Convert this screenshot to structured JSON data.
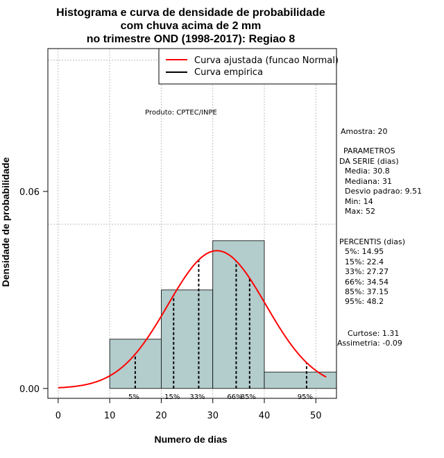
{
  "chart_data": {
    "type": "bar",
    "title_lines": [
      "Histograma e curva de densidade de probabilidade",
      "com chuva acima de 2 mm",
      "no trimestre OND (1998-2017): Regiao 8"
    ],
    "xlabel": "Numero de dias",
    "ylabel": "Densidade de probabilidade",
    "xlim": [
      -2,
      54
    ],
    "ylim": [
      -0.003,
      0.1035
    ],
    "x_ticks": [
      0,
      10,
      20,
      30,
      40,
      50
    ],
    "y_ticks": [
      0.0,
      0.06
    ],
    "y_tick_labels": [
      "0.00",
      "0.06"
    ],
    "bins": [
      {
        "start": 10,
        "end": 20,
        "density": 0.015
      },
      {
        "start": 20,
        "end": 30,
        "density": 0.03
      },
      {
        "start": 30,
        "end": 40,
        "density": 0.045
      },
      {
        "start": 40,
        "end": 54,
        "density": 0.005
      }
    ],
    "normal_fit": {
      "mean": 30.8,
      "sd": 9.51,
      "x_range": [
        0,
        52
      ]
    },
    "percentile_lines": [
      {
        "label": "5%",
        "x": 14.95
      },
      {
        "label": "15%",
        "x": 22.4
      },
      {
        "label": "33%",
        "x": 27.27
      },
      {
        "label": "66%",
        "x": 34.54
      },
      {
        "label": "85%",
        "x": 37.15
      },
      {
        "label": "95%",
        "x": 48.2
      }
    ],
    "legend": {
      "placement": "top-right",
      "items": [
        {
          "label": "Curva ajustada (funcao Normal)",
          "color": "#ff0000"
        },
        {
          "label": "Curva empirica",
          "color": "#000000"
        }
      ]
    },
    "grid": true,
    "colors": {
      "bars": "#b3cccc",
      "fit": "#ff0000",
      "empirical": "#000000",
      "grid": "#bdbdbd"
    }
  },
  "annotations": {
    "product": "Produto: CPTEC/INPE",
    "sample": "Amostra: 20",
    "params_header": [
      "PARAMETROS",
      "DA SERIE (dias)"
    ],
    "params": [
      "Media: 30.8",
      "Mediana: 31",
      "Desvio padrao: 9.51",
      "Min: 14",
      "Max: 52"
    ],
    "percentiles_header": "PERCENTIS (dias)",
    "percentiles": [
      "5%: 14.95",
      "15%: 22.4",
      "33%: 27.27",
      "66%: 34.54",
      "85%: 37.15",
      "95%: 48.2"
    ],
    "shape": [
      "Curtose: 1.31",
      "Assimetria: -0.09"
    ]
  }
}
